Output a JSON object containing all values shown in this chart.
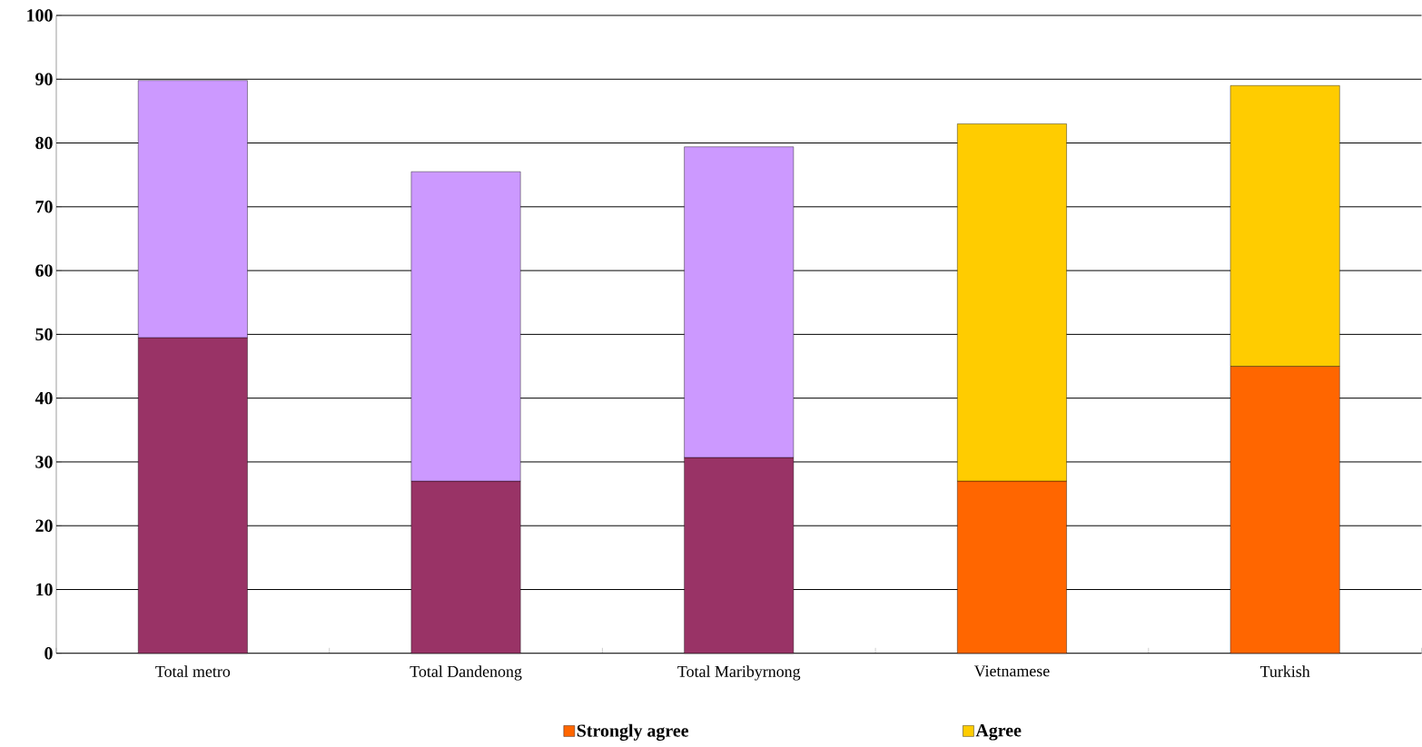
{
  "chart_data": {
    "type": "bar",
    "stacked": true,
    "categories": [
      "Total metro",
      "Total Dandenong",
      "Total Maribyrnong",
      "Vietnamese",
      "Turkish"
    ],
    "series": [
      {
        "name": "Strongly agree",
        "color": "#ff6600",
        "colors": [
          "#993366",
          "#993366",
          "#993366",
          "#ff6600",
          "#ff6600"
        ],
        "values": [
          49.5,
          27,
          30.7,
          27,
          45
        ]
      },
      {
        "name": "Agree",
        "color": "#ffcc00",
        "colors": [
          "#cc99ff",
          "#cc99ff",
          "#cc99ff",
          "#ffcc00",
          "#ffcc00"
        ],
        "values": [
          40.3,
          48.5,
          48.7,
          56,
          44
        ]
      }
    ],
    "ylim": [
      0,
      100
    ],
    "yticks": [
      0,
      10,
      20,
      30,
      40,
      50,
      60,
      70,
      80,
      90,
      100
    ],
    "grid": "y",
    "legend": "bottom"
  }
}
